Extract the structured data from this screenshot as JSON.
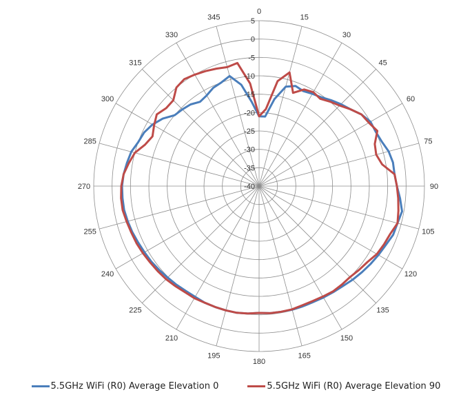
{
  "chart_data": {
    "type": "polar-line",
    "angle_labels": [
      "0",
      "15",
      "30",
      "45",
      "60",
      "75",
      "90",
      "105",
      "120",
      "135",
      "150",
      "165",
      "180",
      "195",
      "210",
      "225",
      "240",
      "255",
      "270",
      "285",
      "300",
      "315",
      "330",
      "345"
    ],
    "radial_ticks": [
      "-40",
      "-35",
      "-30",
      "-25",
      "-20",
      "-15",
      "-10",
      "-5",
      "0",
      "5"
    ],
    "r_min": -40,
    "r_max": 5,
    "series": [
      {
        "name": "5.5GHz WiFi (R0) Average Elevation 0",
        "color": "#4a7ebb",
        "angles": [
          0,
          5,
          10,
          15,
          20,
          25,
          30,
          35,
          40,
          45,
          50,
          55,
          60,
          65,
          70,
          75,
          80,
          85,
          90,
          95,
          100,
          105,
          110,
          115,
          120,
          125,
          130,
          135,
          140,
          145,
          150,
          155,
          160,
          165,
          170,
          175,
          180,
          185,
          190,
          195,
          200,
          205,
          210,
          215,
          220,
          225,
          230,
          235,
          240,
          245,
          250,
          255,
          260,
          265,
          270,
          275,
          280,
          285,
          290,
          295,
          300,
          305,
          310,
          315,
          320,
          325,
          330,
          335,
          340,
          345,
          350,
          355
        ],
        "values": [
          -21,
          -21,
          -16,
          -12,
          -11,
          -11.5,
          -11,
          -10.5,
          -9.5,
          -8.5,
          -7.5,
          -6,
          -5,
          -5,
          -4.5,
          -3.5,
          -3,
          -3,
          -2.5,
          -1.5,
          -0.5,
          -1,
          -1.2,
          -2,
          -2.5,
          -3,
          -3.5,
          -4,
          -4.5,
          -4.8,
          -5,
          -5.2,
          -5.2,
          -5.2,
          -5.3,
          -5.3,
          -5.5,
          -5.2,
          -5,
          -5,
          -5,
          -5,
          -5.2,
          -5.2,
          -5,
          -4.8,
          -4.5,
          -4.2,
          -4,
          -3.7,
          -3.3,
          -3,
          -2.7,
          -2.7,
          -2.7,
          -3,
          -3.5,
          -4,
          -5,
          -5.5,
          -6.5,
          -8,
          -10,
          -10.5,
          -11,
          -12,
          -11.5,
          -10.5,
          -10,
          -9,
          -12,
          -17
        ]
      },
      {
        "name": "5.5GHz WiFi (R0) Average Elevation 90",
        "color": "#be4b48",
        "angles": [
          0,
          5,
          10,
          15,
          20,
          25,
          30,
          35,
          40,
          45,
          50,
          55,
          60,
          65,
          70,
          75,
          80,
          85,
          90,
          95,
          100,
          105,
          110,
          115,
          120,
          125,
          130,
          135,
          140,
          145,
          150,
          155,
          160,
          165,
          170,
          175,
          180,
          185,
          190,
          195,
          200,
          205,
          210,
          215,
          220,
          225,
          230,
          235,
          240,
          245,
          250,
          255,
          260,
          265,
          270,
          275,
          280,
          285,
          290,
          295,
          300,
          305,
          310,
          315,
          320,
          325,
          330,
          335,
          340,
          345,
          350,
          355
        ],
        "values": [
          -21,
          -19,
          -11,
          -8,
          -13,
          -11,
          -10.5,
          -11,
          -10,
          -9,
          -7.5,
          -6,
          -5.5,
          -4.5,
          -6.5,
          -7,
          -6,
          -3,
          -2.5,
          -2,
          -1.5,
          -1,
          -2,
          -2.5,
          -3,
          -4,
          -4.5,
          -5,
          -5,
          -5,
          -5.3,
          -5.5,
          -5.5,
          -5.3,
          -5.3,
          -5.3,
          -5.5,
          -5.2,
          -5,
          -5,
          -5,
          -5,
          -4.8,
          -4.8,
          -4.5,
          -4.2,
          -4,
          -3.8,
          -3.5,
          -3.2,
          -3,
          -2.7,
          -2.3,
          -2.3,
          -2.5,
          -3,
          -4,
          -5,
          -7,
          -8,
          -7,
          -6,
          -7,
          -7,
          -5,
          -4.5,
          -5,
          -5.5,
          -6,
          -6.5,
          -6,
          -12
        ]
      }
    ]
  }
}
